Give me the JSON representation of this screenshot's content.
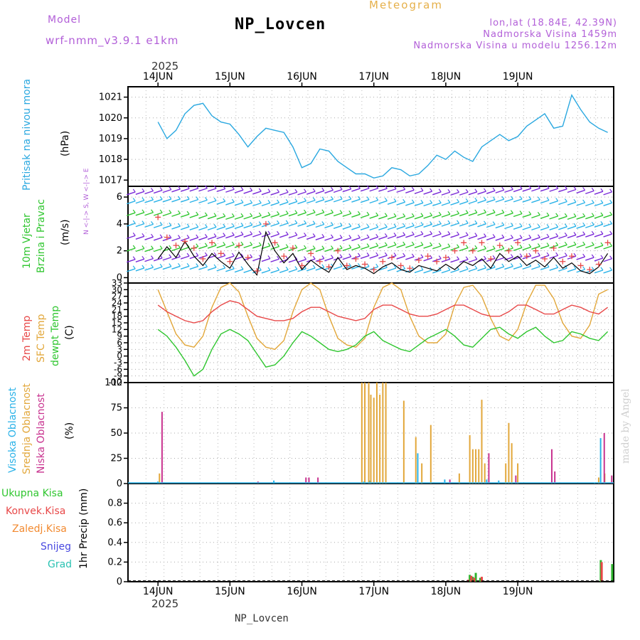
{
  "header": {
    "model_label": "Model",
    "model_name": "wrf-nmm_v3.9.1 e1km",
    "station": "NP_Lovcen",
    "product": "Meteogram",
    "lonlat": "lon,lat (18.84E, 42.39N)",
    "elevation": "Nadmorska Visina 1459m",
    "model_elevation": "Nadmorska Visina u modelu 1256.12m",
    "year_top": "2025",
    "year_bottom": "2025",
    "footer_station": "NP_Lovcen",
    "credit": "made by Angel"
  },
  "colors": {
    "pressure": "#2aa8e0",
    "temp2m": "#e84848",
    "sfc": "#e2a73a",
    "dewpt": "#2fc62f",
    "high": "#2ab2e8",
    "mid": "#e2a73a",
    "low": "#c8328f",
    "total": "#2fb52f",
    "convective": "#e84848",
    "frozen": "#f28a30",
    "snow": "#4848e0",
    "grad": "#2ac2b2",
    "wind_speed": "#000000",
    "gust": "#e84848"
  },
  "chart_data": [
    {
      "type": "line",
      "panel": "pressure",
      "ylabel_main": "Pritisak na nivou mora",
      "ylabel_unit": "(hPa)",
      "ylim": [
        1016.7,
        1021.5
      ],
      "yticks": [
        1017,
        1018,
        1019,
        1020,
        1021
      ],
      "x_dates": [
        "14JUN",
        "15JUN",
        "16JUN",
        "17JUN",
        "18JUN",
        "19JUN"
      ],
      "x_hours": [
        0,
        3,
        6,
        9,
        12,
        15,
        18,
        21,
        24,
        27,
        30,
        33,
        36,
        39,
        42,
        45,
        48,
        51,
        54,
        57,
        60,
        63,
        66,
        69,
        72,
        75,
        78,
        81,
        84,
        87,
        90,
        93,
        96,
        99,
        102,
        105,
        108,
        111,
        114,
        117,
        120,
        123,
        126,
        129,
        132,
        135,
        138,
        141,
        144,
        147,
        150
      ],
      "values": [
        1019.8,
        1019.0,
        1019.4,
        1020.2,
        1020.6,
        1020.7,
        1020.1,
        1019.8,
        1019.7,
        1019.2,
        1018.6,
        1019.1,
        1019.5,
        1019.4,
        1019.3,
        1018.6,
        1017.6,
        1017.8,
        1018.5,
        1018.4,
        1017.9,
        1017.6,
        1017.3,
        1017.3,
        1017.1,
        1017.2,
        1017.6,
        1017.5,
        1017.2,
        1017.3,
        1017.7,
        1018.2,
        1018.0,
        1018.4,
        1018.1,
        1017.9,
        1018.6,
        1018.9,
        1019.2,
        1018.9,
        1019.1,
        1019.6,
        1019.9,
        1020.2,
        1019.5,
        1019.6,
        1021.1,
        1020.4,
        1019.8,
        1019.5,
        1019.3
      ]
    },
    {
      "type": "line",
      "panel": "wind",
      "ylabel_main": "10m Vjetar",
      "ylabel_sub": "Brzina i Pravac",
      "ylabel_unit": "(m/s)",
      "ylim": [
        -0.4,
        6.8
      ],
      "yticks": [
        0,
        2,
        4,
        6
      ],
      "compass": "N <-|-> S, W <-|-> E",
      "series": [
        {
          "name": "speed",
          "values": [
            1.4,
            2.3,
            1.5,
            2.7,
            1.6,
            0.9,
            1.8,
            1.2,
            0.7,
            1.9,
            1.0,
            0.2,
            3.4,
            2.0,
            1.1,
            1.8,
            0.6,
            1.3,
            0.8,
            0.4,
            1.5,
            0.6,
            0.9,
            0.7,
            0.3,
            0.8,
            1.1,
            0.6,
            0.4,
            0.9,
            0.7,
            0.5,
            1.0,
            0.6,
            1.2,
            0.9,
            1.4,
            0.7,
            1.8,
            1.2,
            1.6,
            0.9,
            1.3,
            0.8,
            1.5,
            0.7,
            1.1,
            0.5,
            0.3,
            0.8,
            1.8
          ]
        },
        {
          "name": "gust",
          "values": [
            4.5,
            3.0,
            2.4,
            2.7,
            2.2,
            1.4,
            2.6,
            1.8,
            1.2,
            2.4,
            1.5,
            0.5,
            4.0,
            2.6,
            1.6,
            2.2,
            0.9,
            1.8,
            1.2,
            0.8,
            2.0,
            0.9,
            1.4,
            1.0,
            0.6,
            1.2,
            1.5,
            0.9,
            0.7,
            1.3,
            1.6,
            1.2,
            1.5,
            2.0,
            2.6,
            2.0,
            2.6,
            1.4,
            2.4,
            2.0,
            2.6,
            1.6,
            2.0,
            1.4,
            2.2,
            1.2,
            1.6,
            0.9,
            0.6,
            1.0,
            2.6
          ]
        }
      ]
    },
    {
      "type": "line",
      "panel": "temperature",
      "ylabel_main": "2m Temp",
      "ylabel_sub": "SFC Temp",
      "ylabel_sub2": "dewpt Temp",
      "ylabel_unit": "(C)",
      "ylim": [
        -12,
        33
      ],
      "yticks": [
        -12,
        -9,
        -6,
        -3,
        0,
        3,
        6,
        9,
        12,
        15,
        18,
        21,
        24,
        27,
        30,
        33
      ],
      "series": [
        {
          "name": "2m Temp",
          "values": [
            23,
            20,
            18,
            16,
            15,
            16,
            20,
            23,
            25,
            24,
            21,
            18,
            17,
            16,
            16,
            17,
            20,
            22,
            22,
            20,
            18,
            17,
            16,
            17,
            21,
            23,
            23,
            21,
            19,
            18,
            18,
            19,
            21,
            23,
            23,
            21,
            19,
            18,
            18,
            20,
            23,
            23,
            21,
            19,
            19,
            21,
            23,
            22,
            20,
            19,
            22
          ]
        },
        {
          "name": "SFC Temp",
          "values": [
            30,
            20,
            10,
            5,
            4,
            9,
            22,
            31,
            33,
            29,
            18,
            8,
            4,
            3,
            7,
            20,
            30,
            33,
            30,
            18,
            8,
            5,
            4,
            8,
            22,
            31,
            33,
            30,
            18,
            9,
            6,
            6,
            10,
            23,
            31,
            32,
            27,
            17,
            9,
            7,
            12,
            24,
            32,
            32,
            26,
            15,
            9,
            8,
            14,
            28,
            30
          ]
        },
        {
          "name": "dewpt Temp",
          "values": [
            12,
            9,
            4,
            -2,
            -9,
            -6,
            3,
            10,
            12,
            10,
            7,
            1,
            -5,
            -4,
            0,
            6,
            11,
            9,
            6,
            3,
            2,
            3,
            5,
            9,
            11,
            7,
            5,
            3,
            2,
            5,
            8,
            10,
            12,
            9,
            5,
            4,
            8,
            12,
            13,
            10,
            8,
            11,
            13,
            9,
            6,
            7,
            11,
            10,
            8,
            7,
            11
          ]
        }
      ]
    },
    {
      "type": "bar",
      "panel": "cloud",
      "ylabel_high": "Visoka Oblacnost",
      "ylabel_mid": "Srednja Oblacnost",
      "ylabel_low": "Niska Oblacnost",
      "ylabel_unit": "(%)",
      "ylim": [
        0,
        100
      ],
      "yticks": [
        0,
        25,
        50,
        75,
        100
      ],
      "series": [
        {
          "name": "high",
          "bars": [
            [
              0.3,
              2
            ],
            [
              39,
              3
            ],
            [
              69,
              2
            ],
            [
              71,
              3
            ],
            [
              87,
              30
            ],
            [
              96,
              4
            ],
            [
              110,
              4
            ],
            [
              114,
              3
            ],
            [
              146,
              1
            ],
            [
              148,
              45
            ]
          ]
        },
        {
          "name": "mid",
          "bars": [
            [
              0.5,
              10
            ],
            [
              68,
              100
            ],
            [
              69,
              100
            ],
            [
              70.3,
              100
            ],
            [
              71,
              88
            ],
            [
              72,
              85
            ],
            [
              73,
              100
            ],
            [
              74,
              88
            ],
            [
              75,
              100
            ],
            [
              76,
              100
            ],
            [
              82,
              82
            ],
            [
              86,
              46
            ],
            [
              88,
              20
            ],
            [
              91,
              58
            ],
            [
              100.5,
              10
            ],
            [
              104,
              48
            ],
            [
              105,
              34
            ],
            [
              106,
              34
            ],
            [
              107,
              34
            ],
            [
              108,
              83
            ],
            [
              109,
              20
            ],
            [
              116,
              20
            ],
            [
              117,
              60
            ],
            [
              118,
              40
            ],
            [
              120,
              20
            ],
            [
              147,
              6
            ],
            [
              149,
              10
            ]
          ]
        },
        {
          "name": "low",
          "bars": [
            [
              1,
              71
            ],
            [
              33,
              2
            ],
            [
              49,
              6
            ],
            [
              50,
              6
            ],
            [
              53,
              6
            ],
            [
              97,
              4
            ],
            [
              110,
              30
            ],
            [
              119,
              8
            ],
            [
              131,
              34
            ],
            [
              132,
              12
            ],
            [
              148.5,
              50
            ],
            [
              151,
              8
            ]
          ]
        }
      ]
    },
    {
      "type": "bar",
      "panel": "precip",
      "ylabel": "1hr Precip (mm)",
      "ylim": [
        0,
        1.0
      ],
      "yticks": [
        0,
        0.2,
        0.4,
        0.6,
        0.8
      ],
      "legend": [
        "Ukupna Kisa",
        "Konvek.Kisa",
        "Zaledj.Kisa",
        "Snijeg",
        "Grad"
      ],
      "series": [
        {
          "name": "Ukupna Kisa",
          "bars": [
            [
              104,
              0.07
            ],
            [
              105,
              0.05
            ],
            [
              106,
              0.09
            ],
            [
              107.5,
              0.04
            ],
            [
              147.7,
              0.22
            ],
            [
              151.5,
              0.18
            ]
          ]
        },
        {
          "name": "Konvek.Kisa",
          "bars": [
            [
              103.5,
              0.02
            ],
            [
              104.5,
              0.06
            ],
            [
              105.5,
              0.04
            ],
            [
              108,
              0.05
            ],
            [
              148,
              0.2
            ]
          ]
        }
      ]
    }
  ]
}
